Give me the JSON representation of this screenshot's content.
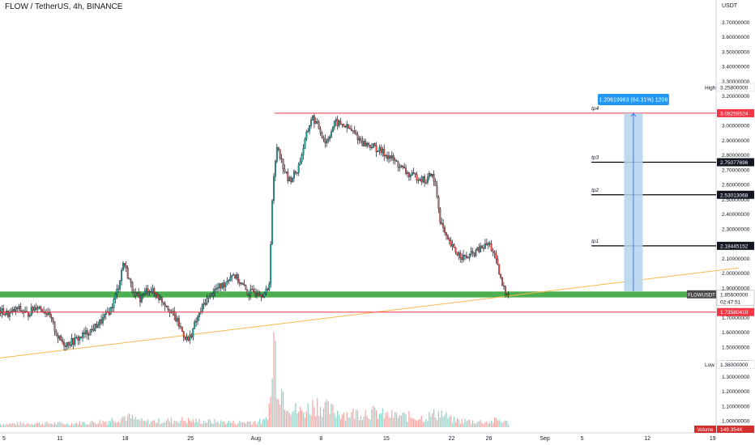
{
  "header": {
    "title": "FLOW / TetherUS, 4h, BINANCE"
  },
  "colors": {
    "up": "#26a69a",
    "down": "#ef5350",
    "wick": "#131722",
    "support_zone": "#4caf50",
    "trendline": "#f9b94e",
    "resistance_line": "#f23645",
    "target_line": "#000000",
    "measure_fill": "#b3d4ee",
    "measure_border": "#2962ff",
    "measure_label_bg": "#2196f3"
  },
  "chart_data": {
    "type": "candlestick",
    "symbol": "FLOWUSDT",
    "y_axis": {
      "label": "USDT",
      "range": [
        1.0,
        3.8
      ],
      "ticks": [
        "3.70000000",
        "3.60000000",
        "3.50000000",
        "3.40000000",
        "3.30000000",
        "3.20000000",
        "3.10000000",
        "3.00000000",
        "2.90000000",
        "2.80000000",
        "2.70000000",
        "2.60000000",
        "2.50000000",
        "2.40000000",
        "2.30000000",
        "2.20000000",
        "2.10000000",
        "2.00000000",
        "1.90000000",
        "1.80000000",
        "1.70000000",
        "1.60000000",
        "1.50000000",
        "1.40000000",
        "1.30000000",
        "1.20000000",
        "1.10000000",
        "1.00000000"
      ]
    },
    "x_axis": {
      "ticks": [
        {
          "label": "5",
          "day": 5
        },
        {
          "label": "11",
          "day": 11
        },
        {
          "label": "18",
          "day": 18
        },
        {
          "label": "25",
          "day": 25
        },
        {
          "label": "Aug",
          "day": 32
        },
        {
          "label": "8",
          "day": 39
        },
        {
          "label": "15",
          "day": 46
        },
        {
          "label": "22",
          "day": 53
        },
        {
          "label": "26",
          "day": 57
        },
        {
          "label": "Sep",
          "day": 63
        },
        {
          "label": "5",
          "day": 67
        },
        {
          "label": "12",
          "day": 74
        },
        {
          "label": "19",
          "day": 81
        }
      ]
    },
    "price_path": [
      [
        4.6,
        1.74
      ],
      [
        5.5,
        1.72
      ],
      [
        6.5,
        1.76
      ],
      [
        7.5,
        1.72
      ],
      [
        8.5,
        1.78
      ],
      [
        9.5,
        1.74
      ],
      [
        10.2,
        1.66
      ],
      [
        10.8,
        1.56
      ],
      [
        11.5,
        1.52
      ],
      [
        12.5,
        1.54
      ],
      [
        13.5,
        1.58
      ],
      [
        14.5,
        1.62
      ],
      [
        15.5,
        1.68
      ],
      [
        16.5,
        1.76
      ],
      [
        17.3,
        1.92
      ],
      [
        17.8,
        2.08
      ],
      [
        18.3,
        1.98
      ],
      [
        18.8,
        1.88
      ],
      [
        19.5,
        1.82
      ],
      [
        20.5,
        1.9
      ],
      [
        21.5,
        1.84
      ],
      [
        22.5,
        1.78
      ],
      [
        23.5,
        1.68
      ],
      [
        24.3,
        1.58
      ],
      [
        24.8,
        1.54
      ],
      [
        25.5,
        1.66
      ],
      [
        26.5,
        1.8
      ],
      [
        27.5,
        1.88
      ],
      [
        28.5,
        1.92
      ],
      [
        29.5,
        2.0
      ],
      [
        30.5,
        1.92
      ],
      [
        31.2,
        1.86
      ],
      [
        32.0,
        1.88
      ],
      [
        32.8,
        1.86
      ],
      [
        33.4,
        1.88
      ],
      [
        33.8,
        2.55
      ],
      [
        34.3,
        2.88
      ],
      [
        34.8,
        2.75
      ],
      [
        35.5,
        2.62
      ],
      [
        36.5,
        2.7
      ],
      [
        37.3,
        2.9
      ],
      [
        38.0,
        3.06
      ],
      [
        38.8,
        2.98
      ],
      [
        39.5,
        2.88
      ],
      [
        40.5,
        3.02
      ],
      [
        41.5,
        3.0
      ],
      [
        42.5,
        2.95
      ],
      [
        43.5,
        2.88
      ],
      [
        44.5,
        2.86
      ],
      [
        45.5,
        2.82
      ],
      [
        46.5,
        2.78
      ],
      [
        47.5,
        2.72
      ],
      [
        48.5,
        2.66
      ],
      [
        49.5,
        2.65
      ],
      [
        50.3,
        2.62
      ],
      [
        50.8,
        2.68
      ],
      [
        51.3,
        2.58
      ],
      [
        51.8,
        2.35
      ],
      [
        52.5,
        2.22
      ],
      [
        53.5,
        2.14
      ],
      [
        54.5,
        2.1
      ],
      [
        55.5,
        2.14
      ],
      [
        56.5,
        2.18
      ],
      [
        57.0,
        2.2
      ],
      [
        57.5,
        2.14
      ],
      [
        58.0,
        2.02
      ],
      [
        58.4,
        1.92
      ],
      [
        58.8,
        1.87
      ],
      [
        59.2,
        1.87
      ]
    ],
    "volume_range": [
      0,
      150
    ],
    "volume_profile": [
      [
        4.6,
        5
      ],
      [
        8,
        7
      ],
      [
        12,
        6
      ],
      [
        16,
        10
      ],
      [
        18,
        18
      ],
      [
        20,
        9
      ],
      [
        24,
        12
      ],
      [
        26,
        10
      ],
      [
        30,
        8
      ],
      [
        33,
        10
      ],
      [
        33.6,
        45
      ],
      [
        33.9,
        150
      ],
      [
        34.4,
        80
      ],
      [
        35,
        55
      ],
      [
        36,
        30
      ],
      [
        37,
        25
      ],
      [
        38.5,
        40
      ],
      [
        40,
        28
      ],
      [
        42,
        22
      ],
      [
        44,
        26
      ],
      [
        46,
        20
      ],
      [
        48,
        18
      ],
      [
        50,
        16
      ],
      [
        51.8,
        24
      ],
      [
        53,
        12
      ],
      [
        55,
        10
      ],
      [
        57,
        9
      ],
      [
        58,
        12
      ],
      [
        59.2,
        7
      ]
    ],
    "current_price": {
      "value": 1.856,
      "label": "1.85600000",
      "countdown": "02:47:51",
      "symbol_tag": "FLOWUSDT"
    },
    "support_zone": {
      "low": 1.835,
      "high": 1.875
    },
    "levels": [
      {
        "name": "tp4",
        "value": 3.08259524,
        "label": "3.08259524",
        "style": "resistance",
        "start_day": 34
      },
      {
        "name": "tp3",
        "value": 2.75077696,
        "label": "2.75077696",
        "style": "target",
        "start_day": 68
      },
      {
        "name": "tp2",
        "value": 2.53013068,
        "label": "2.53013068",
        "style": "target",
        "start_day": 68
      },
      {
        "name": "tp1",
        "value": 2.18445152,
        "label": "2.18445152",
        "style": "target",
        "start_day": 68
      },
      {
        "name": "support2",
        "value": 1.7358041,
        "label": "1.73580410",
        "style": "resistance",
        "start_day": 4.5
      }
    ],
    "trendline": {
      "start": [
        4.5,
        1.425
      ],
      "end": [
        83.8,
        2.035
      ]
    },
    "measure": {
      "day_start": 71.5,
      "day_end": 73.5,
      "from": 1.876,
      "to": 3.082,
      "label": "1.20619963 (64.31%) 1206"
    },
    "high_marker": {
      "tag": "High",
      "label": "3.25800000",
      "value": 3.258
    },
    "low_marker": {
      "tag": "Low",
      "label": "1.38000000",
      "value": 1.38
    },
    "volume_readout": {
      "tag": "Volume",
      "label": "149.354K"
    }
  }
}
